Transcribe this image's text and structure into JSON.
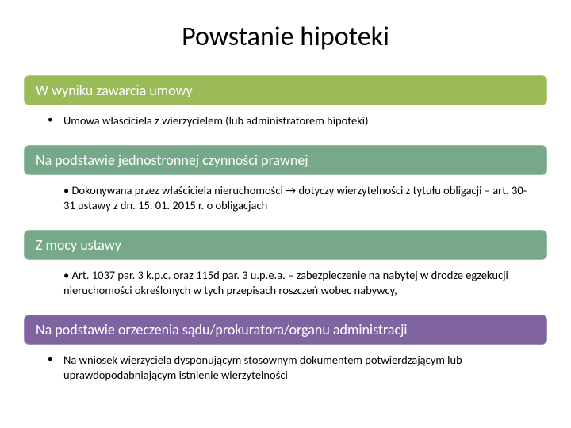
{
  "title": "Powstanie hipoteki",
  "sections": [
    {
      "header": "W wyniku zawarcia umowy",
      "header_bg": "#9bbb59",
      "bullet_marker": "•",
      "body": "Umowa właściciela z wierzycielem (lub administratorem hipoteki)"
    },
    {
      "header": "Na podstawie jednostronnej czynności prawnej",
      "header_bg": "#77a88a",
      "bullet_marker": "",
      "body": "• Dokonywana przez właściciela nieruchomości → dotyczy wierzytelności z tytułu obligacji – art. 30-31 ustawy z dn. 15. 01. 2015 r. o obligacjach"
    },
    {
      "header": "Z mocy ustawy",
      "header_bg": "#77a88a",
      "bullet_marker": "",
      "body": "• Art. 1037 par. 3 k.p.c. oraz 115d par. 3 u.p.e.a. – zabezpieczenie na nabytej w drodze egzekucji nieruchomości określonych w tych przepisach roszczeń wobec nabywcy,"
    },
    {
      "header": "Na podstawie orzeczenia sądu/prokuratora/organu administracji",
      "header_bg": "#8064a2",
      "bullet_marker": "•",
      "body": "Na wniosek wierzyciela dysponującym stosownym dokumentem potwierdzającym lub uprawdopodabniającym istnienie wierzytelności"
    }
  ]
}
